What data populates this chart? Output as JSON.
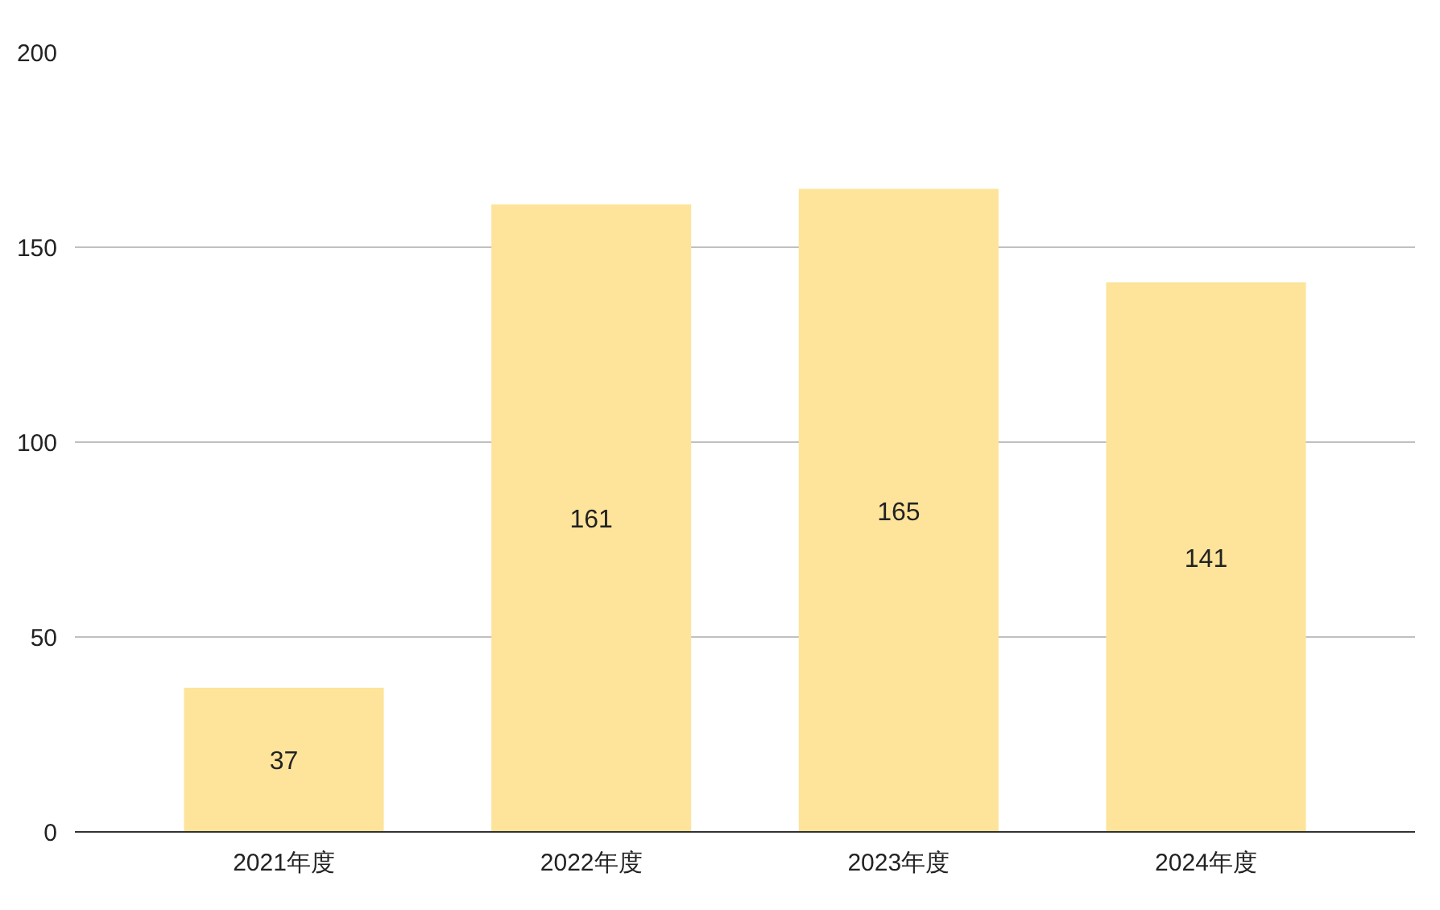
{
  "chart_data": {
    "type": "bar",
    "categories": [
      "2021年度",
      "2022年度",
      "2023年度",
      "2024年度"
    ],
    "values": [
      37,
      161,
      165,
      141
    ],
    "color": "#fde49a",
    "ylim": [
      0,
      200
    ],
    "yticks": [
      0,
      50,
      100,
      150,
      200
    ],
    "grid": "y",
    "data_labels": true
  }
}
